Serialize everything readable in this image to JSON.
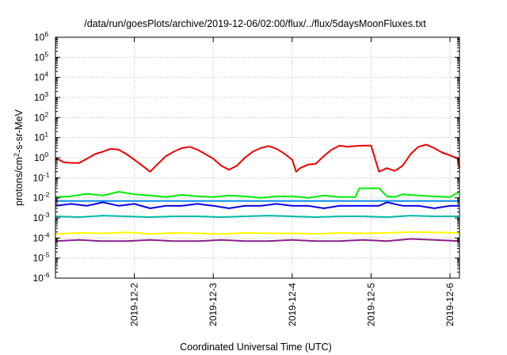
{
  "chart_data": {
    "type": "line",
    "title": "/data/run/goesPlots/archive/2019-12-06/02:00/flux/../flux/5daysMoonFluxes.txt",
    "xlabel": "Coordinated Universal Time (UTC)",
    "ylabel": "protons/cm2-s-sr-MeV",
    "ylabel_main": "protons/cm",
    "ylabel_sup": "2",
    "ylabel_rest": "-s-sr-MeV",
    "yscale": "log",
    "ylim": [
      1e-06,
      1000000.0
    ],
    "xlim": [
      1.0,
      6.12
    ],
    "grid": true,
    "y_ticks": [
      {
        "base": "10",
        "exp": "-6",
        "value": -6
      },
      {
        "base": "10",
        "exp": "-5",
        "value": -5
      },
      {
        "base": "10",
        "exp": "-4",
        "value": -4
      },
      {
        "base": "10",
        "exp": "-3",
        "value": -3
      },
      {
        "base": "10",
        "exp": "-2",
        "value": -2
      },
      {
        "base": "10",
        "exp": "-1",
        "value": -1
      },
      {
        "base": "10",
        "exp": "0",
        "value": 0
      },
      {
        "base": "10",
        "exp": "1",
        "value": 1
      },
      {
        "base": "10",
        "exp": "2",
        "value": 2
      },
      {
        "base": "10",
        "exp": "3",
        "value": 3
      },
      {
        "base": "10",
        "exp": "4",
        "value": 4
      },
      {
        "base": "10",
        "exp": "5",
        "value": 5
      },
      {
        "base": "10",
        "exp": "6",
        "value": 6
      }
    ],
    "x_ticks": [
      {
        "label": "2019-12-2",
        "value": 2
      },
      {
        "label": "2019-12-3",
        "value": 3
      },
      {
        "label": "2019-12-4",
        "value": 4
      },
      {
        "label": "2019-12-5",
        "value": 5
      },
      {
        "label": "2019-12-6",
        "value": 6
      }
    ],
    "series": [
      {
        "color": "#00ee00",
        "x": [
          1.0,
          1.2,
          1.4,
          1.6,
          1.8,
          2.0,
          2.2,
          2.4,
          2.6,
          2.8,
          3.0,
          3.2,
          3.4,
          3.6,
          3.8,
          4.0,
          4.2,
          4.4,
          4.6,
          4.8,
          4.85,
          4.9,
          5.1,
          5.2,
          5.3,
          5.4,
          5.6,
          5.8,
          6.0,
          6.12
        ],
        "y": [
          0.011,
          0.012,
          0.016,
          0.013,
          0.02,
          0.015,
          0.013,
          0.011,
          0.014,
          0.012,
          0.011,
          0.013,
          0.012,
          0.01,
          0.012,
          0.012,
          0.01,
          0.013,
          0.011,
          0.011,
          0.03,
          0.03,
          0.03,
          0.012,
          0.011,
          0.015,
          0.013,
          0.012,
          0.011,
          0.02
        ]
      },
      {
        "color": "#0000ee",
        "x": [
          1.0,
          1.2,
          1.4,
          1.6,
          1.8,
          2.0,
          2.2,
          2.4,
          2.6,
          2.8,
          3.0,
          3.2,
          3.4,
          3.6,
          3.8,
          4.0,
          4.2,
          4.4,
          4.6,
          4.8,
          5.0,
          5.1,
          5.2,
          5.4,
          5.6,
          5.8,
          6.0,
          6.12
        ],
        "y": [
          0.004,
          0.005,
          0.004,
          0.006,
          0.004,
          0.005,
          0.003,
          0.004,
          0.004,
          0.005,
          0.004,
          0.003,
          0.004,
          0.004,
          0.005,
          0.004,
          0.004,
          0.003,
          0.004,
          0.004,
          0.004,
          0.004,
          0.006,
          0.004,
          0.004,
          0.003,
          0.004,
          0.004
        ]
      },
      {
        "color": "#0088ee",
        "x": [
          1.0,
          1.5,
          2.0,
          2.5,
          3.0,
          3.5,
          4.0,
          4.5,
          5.0,
          5.5,
          6.0,
          6.12
        ],
        "y": [
          0.007,
          0.007,
          0.007,
          0.007,
          0.007,
          0.007,
          0.007,
          0.007,
          0.007,
          0.007,
          0.007,
          0.007
        ]
      },
      {
        "color": "#00bbaa",
        "x": [
          1.0,
          1.3,
          1.6,
          1.9,
          2.2,
          2.5,
          2.8,
          3.1,
          3.4,
          3.7,
          4.0,
          4.3,
          4.6,
          4.9,
          5.2,
          5.5,
          5.8,
          6.12
        ],
        "y": [
          0.0012,
          0.0011,
          0.0013,
          0.0012,
          0.0011,
          0.0012,
          0.0012,
          0.0011,
          0.0012,
          0.0013,
          0.0012,
          0.0011,
          0.0012,
          0.0012,
          0.0011,
          0.0013,
          0.0012,
          0.0012
        ]
      },
      {
        "color": "#ee0000",
        "x": [
          1.0,
          1.1,
          1.2,
          1.3,
          1.4,
          1.5,
          1.6,
          1.7,
          1.8,
          1.9,
          2.0,
          2.1,
          2.2,
          2.3,
          2.4,
          2.5,
          2.6,
          2.7,
          2.8,
          2.9,
          3.0,
          3.1,
          3.2,
          3.3,
          3.4,
          3.5,
          3.6,
          3.7,
          3.8,
          3.9,
          4.0,
          4.05,
          4.1,
          4.2,
          4.3,
          4.4,
          4.5,
          4.6,
          4.7,
          4.8,
          4.9,
          5.0,
          5.05,
          5.1,
          5.2,
          5.3,
          5.4,
          5.5,
          5.6,
          5.7,
          5.8,
          5.9,
          6.0,
          6.1,
          6.12
        ],
        "y": [
          1.0,
          0.6,
          0.55,
          0.55,
          0.9,
          1.5,
          2.0,
          2.8,
          2.5,
          1.5,
          0.8,
          0.4,
          0.2,
          0.5,
          1.2,
          2.0,
          3.0,
          3.5,
          2.5,
          1.5,
          0.9,
          0.4,
          0.25,
          0.4,
          1.0,
          2.0,
          3.0,
          3.8,
          2.8,
          1.6,
          0.8,
          0.2,
          0.3,
          0.45,
          0.5,
          1.2,
          2.5,
          4.0,
          3.5,
          3.8,
          4.0,
          4.0,
          0.9,
          0.2,
          0.3,
          0.22,
          0.4,
          1.5,
          3.5,
          4.5,
          3.0,
          1.8,
          1.3,
          0.9,
          0.3
        ]
      },
      {
        "color": "#ffff00",
        "x": [
          1.0,
          1.3,
          1.6,
          1.9,
          2.2,
          2.5,
          2.8,
          3.1,
          3.4,
          3.7,
          4.0,
          4.3,
          4.6,
          4.9,
          5.2,
          5.5,
          5.8,
          6.12
        ],
        "y": [
          0.00016,
          0.00018,
          0.00017,
          0.00019,
          0.00016,
          0.00018,
          0.00017,
          0.00016,
          0.00018,
          0.00017,
          0.00017,
          0.00016,
          0.00018,
          0.00017,
          0.00018,
          0.0002,
          0.00019,
          0.00018
        ]
      },
      {
        "color": "#882288",
        "x": [
          1.0,
          1.3,
          1.6,
          1.9,
          2.2,
          2.5,
          2.8,
          3.1,
          3.4,
          3.7,
          4.0,
          4.3,
          4.6,
          4.9,
          5.2,
          5.5,
          5.8,
          6.12
        ],
        "y": [
          7e-05,
          8e-05,
          7e-05,
          7e-05,
          8e-05,
          7e-05,
          7e-05,
          8e-05,
          7e-05,
          7e-05,
          8e-05,
          7e-05,
          7e-05,
          8e-05,
          7e-05,
          9e-05,
          8e-05,
          7e-05
        ]
      }
    ]
  }
}
